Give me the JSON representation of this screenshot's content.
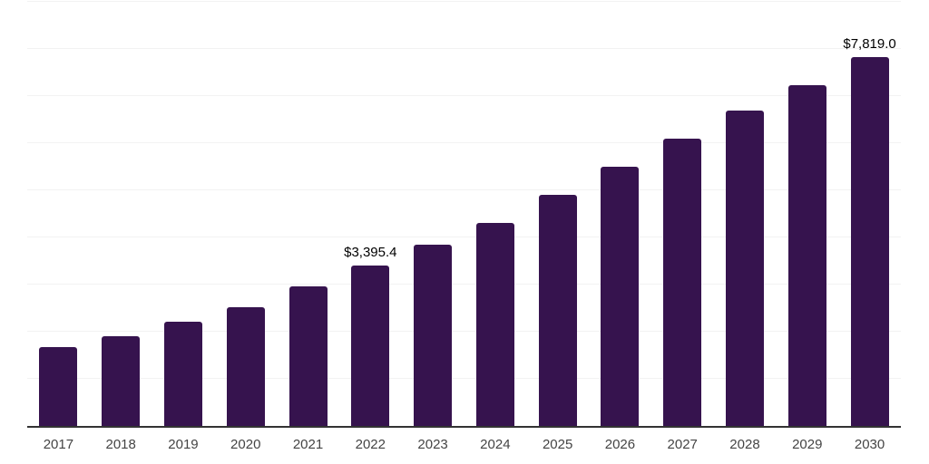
{
  "chart_data": {
    "type": "bar",
    "title": "",
    "xlabel": "",
    "ylabel": "",
    "categories": [
      "2017",
      "2018",
      "2019",
      "2020",
      "2021",
      "2022",
      "2023",
      "2024",
      "2025",
      "2026",
      "2027",
      "2028",
      "2029",
      "2030"
    ],
    "values": [
      1676,
      1904,
      2210,
      2527,
      2955,
      3395.4,
      3852,
      4311,
      4903,
      5495,
      6093,
      6685,
      7226,
      7819
    ],
    "data_labels": [
      {
        "category": "2022",
        "text": "$3,395.4"
      },
      {
        "category": "2030",
        "text": "$7,819.0"
      }
    ],
    "ylim": [
      0,
      9000
    ],
    "gridline_step": 1000,
    "grid_on": true,
    "legend": "none",
    "colors": {
      "bar": "#36134E",
      "axis": "#333333",
      "gridline": "#f2f2f2",
      "data_label": "#000000",
      "tick_label": "#444444",
      "background": "#ffffff"
    }
  }
}
